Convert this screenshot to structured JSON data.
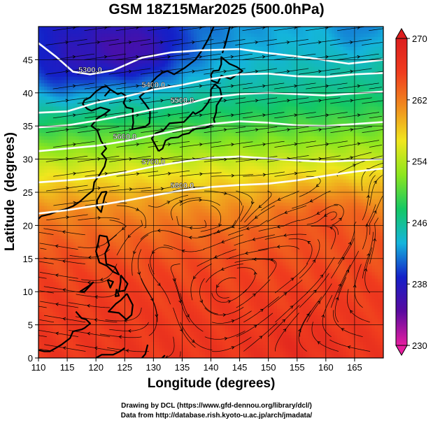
{
  "chart_data": {
    "type": "heatmap",
    "title": "GSM 18Z15Mar2025 (500.0hPa)",
    "xlabel": "Longitude (degrees)",
    "ylabel": "Latitude  (degrees)",
    "xlim": [
      110,
      170
    ],
    "ylim": [
      0,
      50
    ],
    "xticks": [
      110,
      115,
      120,
      125,
      130,
      135,
      140,
      145,
      150,
      155,
      160,
      165
    ],
    "yticks": [
      0,
      5,
      10,
      15,
      20,
      25,
      30,
      35,
      40,
      45
    ],
    "grid": true,
    "colorbar": {
      "min": 230,
      "max": 270,
      "ticks": [
        230,
        238,
        246,
        254,
        262,
        270
      ],
      "placement": "right",
      "stops": [
        "#e61ea0",
        "#5a0aa0",
        "#1420c8",
        "#14b4dc",
        "#14c864",
        "#8ce61e",
        "#f0e61e",
        "#f08c1e",
        "#f03c1e",
        "#dc1e1e"
      ]
    },
    "contours": [
      {
        "label": "5300.0",
        "points": [
          [
            110,
            47.5
          ],
          [
            113,
            45.5
          ],
          [
            116,
            43.2
          ],
          [
            119,
            42.8
          ],
          [
            123,
            43.4
          ],
          [
            128,
            45.3
          ],
          [
            133,
            46.1
          ],
          [
            138,
            46.4
          ],
          [
            145,
            46.6
          ],
          [
            150,
            46.0
          ],
          [
            157,
            45.3
          ],
          [
            164,
            44.4
          ],
          [
            170,
            45.0
          ]
        ]
      },
      {
        "label": "5400.0",
        "points": [
          [
            110,
            37.0
          ],
          [
            115,
            37.2
          ],
          [
            120,
            38.5
          ],
          [
            125,
            39.4
          ],
          [
            130,
            40.5
          ],
          [
            135,
            41.2
          ],
          [
            140,
            42.1
          ],
          [
            145,
            42.8
          ],
          [
            150,
            42.9
          ],
          [
            155,
            42.5
          ],
          [
            160,
            42.4
          ],
          [
            165,
            42.8
          ],
          [
            170,
            43.0
          ]
        ]
      },
      {
        "label": "5500.0",
        "points": [
          [
            110,
            34.8
          ],
          [
            115,
            35.1
          ],
          [
            120,
            35.8
          ],
          [
            125,
            36.6
          ],
          [
            130,
            37.5
          ],
          [
            135,
            38.2
          ],
          [
            140,
            39.3
          ],
          [
            145,
            39.8
          ],
          [
            150,
            40.0
          ],
          [
            155,
            39.8
          ],
          [
            160,
            39.6
          ],
          [
            165,
            39.9
          ],
          [
            170,
            40.2
          ]
        ]
      },
      {
        "label": "5600.0",
        "points": [
          [
            110,
            31.2
          ],
          [
            115,
            31.6
          ],
          [
            120,
            32.0
          ],
          [
            125,
            32.7
          ],
          [
            130,
            33.6
          ],
          [
            135,
            34.5
          ],
          [
            140,
            35.3
          ],
          [
            145,
            35.7
          ],
          [
            150,
            35.5
          ],
          [
            155,
            35.1
          ],
          [
            160,
            35.0
          ],
          [
            165,
            35.3
          ],
          [
            170,
            35.6
          ]
        ]
      },
      {
        "label": "5700.0",
        "points": [
          [
            110,
            26.5
          ],
          [
            115,
            26.8
          ],
          [
            120,
            27.2
          ],
          [
            125,
            28.0
          ],
          [
            130,
            28.9
          ],
          [
            135,
            29.6
          ],
          [
            140,
            30.2
          ],
          [
            145,
            30.4
          ],
          [
            150,
            30.1
          ],
          [
            155,
            29.8
          ],
          [
            160,
            29.6
          ],
          [
            165,
            29.8
          ],
          [
            170,
            30.0
          ]
        ]
      },
      {
        "label": "5800.0",
        "points": [
          [
            110,
            21.8
          ],
          [
            115,
            22.3
          ],
          [
            120,
            23.0
          ],
          [
            125,
            23.7
          ],
          [
            130,
            24.5
          ],
          [
            135,
            25.3
          ],
          [
            140,
            25.8
          ],
          [
            145,
            26.1
          ],
          [
            150,
            26.3
          ],
          [
            155,
            26.8
          ],
          [
            160,
            27.5
          ],
          [
            165,
            28.1
          ],
          [
            170,
            28.6
          ]
        ]
      }
    ],
    "coastlines": [
      [
        [
          121.5,
          39.5
        ],
        [
          122.5,
          40.5
        ],
        [
          121.8,
          41.0
        ],
        [
          121.0,
          40.8
        ],
        [
          120.0,
          40.2
        ],
        [
          119.0,
          39.3
        ],
        [
          118.0,
          38.9
        ],
        [
          117.7,
          38.3
        ],
        [
          118.5,
          37.6
        ],
        [
          119.2,
          37.3
        ],
        [
          120.8,
          37.8
        ],
        [
          122.4,
          37.4
        ],
        [
          121.5,
          36.8
        ],
        [
          120.3,
          36.2
        ],
        [
          119.2,
          35.0
        ],
        [
          120.2,
          34.4
        ],
        [
          120.9,
          32.7
        ],
        [
          121.8,
          31.6
        ],
        [
          121.0,
          30.8
        ],
        [
          121.8,
          30.0
        ],
        [
          121.5,
          28.9
        ],
        [
          120.6,
          27.6
        ],
        [
          119.7,
          26.5
        ],
        [
          119.5,
          25.3
        ],
        [
          118.5,
          24.6
        ],
        [
          117.2,
          23.6
        ],
        [
          116.0,
          22.9
        ],
        [
          114.5,
          22.4
        ],
        [
          113.5,
          22.2
        ],
        [
          112.0,
          21.7
        ],
        [
          110.5,
          21.4
        ],
        [
          110.0,
          21.0
        ]
      ],
      [
        [
          122.5,
          40.5
        ],
        [
          123.8,
          39.8
        ],
        [
          124.4,
          40.0
        ],
        [
          125.3,
          39.5
        ],
        [
          124.8,
          38.5
        ],
        [
          125.3,
          37.8
        ],
        [
          126.4,
          37.6
        ],
        [
          126.4,
          36.6
        ],
        [
          126.5,
          35.5
        ],
        [
          126.3,
          34.5
        ],
        [
          127.5,
          34.7
        ],
        [
          128.6,
          34.9
        ],
        [
          129.3,
          35.4
        ],
        [
          129.4,
          36.4
        ],
        [
          129.4,
          37.3
        ],
        [
          128.6,
          38.3
        ],
        [
          127.6,
          39.4
        ],
        [
          128.4,
          40.0
        ],
        [
          129.7,
          40.8
        ],
        [
          129.7,
          41.6
        ],
        [
          130.6,
          42.4
        ],
        [
          131.5,
          43.0
        ],
        [
          132.4,
          43.3
        ],
        [
          133.6,
          42.8
        ],
        [
          135.5,
          43.8
        ],
        [
          137.3,
          45.0
        ],
        [
          138.5,
          46.5
        ],
        [
          139.6,
          48.2
        ],
        [
          140.5,
          50.0
        ]
      ],
      [
        [
          130.9,
          31.2
        ],
        [
          130.3,
          32.2
        ],
        [
          129.7,
          33.1
        ],
        [
          130.4,
          33.9
        ],
        [
          131.7,
          34.3
        ],
        [
          132.8,
          35.4
        ],
        [
          134.0,
          35.5
        ],
        [
          135.3,
          35.6
        ],
        [
          136.2,
          36.4
        ],
        [
          136.9,
          37.1
        ],
        [
          137.3,
          36.8
        ],
        [
          138.5,
          37.4
        ],
        [
          139.5,
          38.5
        ],
        [
          140.0,
          39.5
        ],
        [
          140.0,
          40.5
        ],
        [
          140.7,
          41.3
        ],
        [
          141.6,
          40.6
        ],
        [
          141.9,
          39.3
        ],
        [
          141.0,
          38.1
        ],
        [
          140.9,
          37.0
        ],
        [
          140.5,
          36.0
        ],
        [
          140.7,
          35.4
        ],
        [
          139.8,
          35.0
        ],
        [
          139.0,
          34.7
        ],
        [
          137.5,
          34.6
        ],
        [
          136.8,
          34.4
        ],
        [
          136.2,
          33.9
        ],
        [
          135.1,
          33.7
        ],
        [
          134.3,
          33.3
        ],
        [
          133.0,
          33.2
        ],
        [
          132.1,
          32.8
        ],
        [
          131.6,
          31.6
        ],
        [
          130.9,
          31.2
        ]
      ],
      [
        [
          141.2,
          41.5
        ],
        [
          140.2,
          41.8
        ],
        [
          140.0,
          42.7
        ],
        [
          140.4,
          43.3
        ],
        [
          141.4,
          43.4
        ],
        [
          141.8,
          44.3
        ],
        [
          141.8,
          45.4
        ],
        [
          143.2,
          44.4
        ],
        [
          144.5,
          43.9
        ],
        [
          145.5,
          43.3
        ],
        [
          144.8,
          42.9
        ],
        [
          143.4,
          42.1
        ],
        [
          141.8,
          42.6
        ],
        [
          141.2,
          41.5
        ]
      ],
      [
        [
          142.0,
          46.0
        ],
        [
          142.5,
          47.3
        ],
        [
          143.0,
          49.0
        ],
        [
          143.3,
          50.0
        ]
      ],
      [
        [
          121.9,
          25.1
        ],
        [
          121.5,
          24.3
        ],
        [
          120.9,
          22.0
        ],
        [
          120.2,
          22.7
        ],
        [
          120.2,
          23.8
        ],
        [
          121.0,
          25.0
        ],
        [
          121.9,
          25.1
        ]
      ],
      [
        [
          120.6,
          18.5
        ],
        [
          121.9,
          18.3
        ],
        [
          122.3,
          17.0
        ],
        [
          121.6,
          15.8
        ],
        [
          121.8,
          14.2
        ],
        [
          123.3,
          13.7
        ],
        [
          124.0,
          12.6
        ],
        [
          123.0,
          13.0
        ],
        [
          121.9,
          13.9
        ],
        [
          120.6,
          14.4
        ],
        [
          120.0,
          16.1
        ],
        [
          120.4,
          17.4
        ],
        [
          120.6,
          18.5
        ]
      ],
      [
        [
          124.3,
          12.5
        ],
        [
          125.5,
          11.2
        ],
        [
          125.0,
          10.2
        ],
        [
          124.0,
          10.0
        ],
        [
          124.3,
          11.5
        ],
        [
          124.3,
          12.5
        ]
      ],
      [
        [
          122.0,
          11.8
        ],
        [
          123.0,
          11.5
        ],
        [
          122.5,
          10.6
        ],
        [
          122.0,
          11.8
        ]
      ],
      [
        [
          123.6,
          10.4
        ],
        [
          124.0,
          9.4
        ],
        [
          123.4,
          9.3
        ],
        [
          123.6,
          10.4
        ]
      ],
      [
        [
          125.4,
          9.7
        ],
        [
          126.4,
          8.0
        ],
        [
          126.2,
          6.5
        ],
        [
          125.3,
          5.8
        ],
        [
          124.0,
          6.8
        ],
        [
          122.2,
          7.0
        ],
        [
          123.5,
          8.2
        ],
        [
          124.3,
          8.7
        ],
        [
          125.4,
          9.7
        ]
      ],
      [
        [
          117.2,
          10.0
        ],
        [
          118.8,
          10.9
        ],
        [
          119.5,
          11.4
        ],
        [
          118.0,
          10.0
        ],
        [
          117.2,
          10.0
        ]
      ],
      [
        [
          116.5,
          7.0
        ],
        [
          117.5,
          6.0
        ],
        [
          118.3,
          5.8
        ],
        [
          119.0,
          5.2
        ],
        [
          118.0,
          4.5
        ],
        [
          117.5,
          4.3
        ],
        [
          116.0,
          4.0
        ],
        [
          115.5,
          3.0
        ],
        [
          114.0,
          2.0
        ],
        [
          113.0,
          1.5
        ],
        [
          112.0,
          1.0
        ],
        [
          111.0,
          1.0
        ],
        [
          110.0,
          1.2
        ]
      ],
      [
        [
          129.0,
          2.0
        ],
        [
          128.6,
          0.6
        ],
        [
          128.0,
          0.0
        ]
      ],
      [
        [
          131.0,
          -0.5
        ],
        [
          131.5,
          0.0
        ],
        [
          132.0,
          0.4
        ]
      ],
      [
        [
          125.0,
          1.5
        ],
        [
          124.2,
          1.0
        ],
        [
          123.0,
          0.5
        ],
        [
          121.0,
          0.5
        ],
        [
          120.0,
          0.0
        ]
      ]
    ]
  },
  "credits": {
    "line1": "Drawing by DCL (https://www.gfd-dennou.org/library/dcl/)",
    "line2": "Data from http://database.rish.kyoto-u.ac.jp/arch/jmadata/"
  }
}
